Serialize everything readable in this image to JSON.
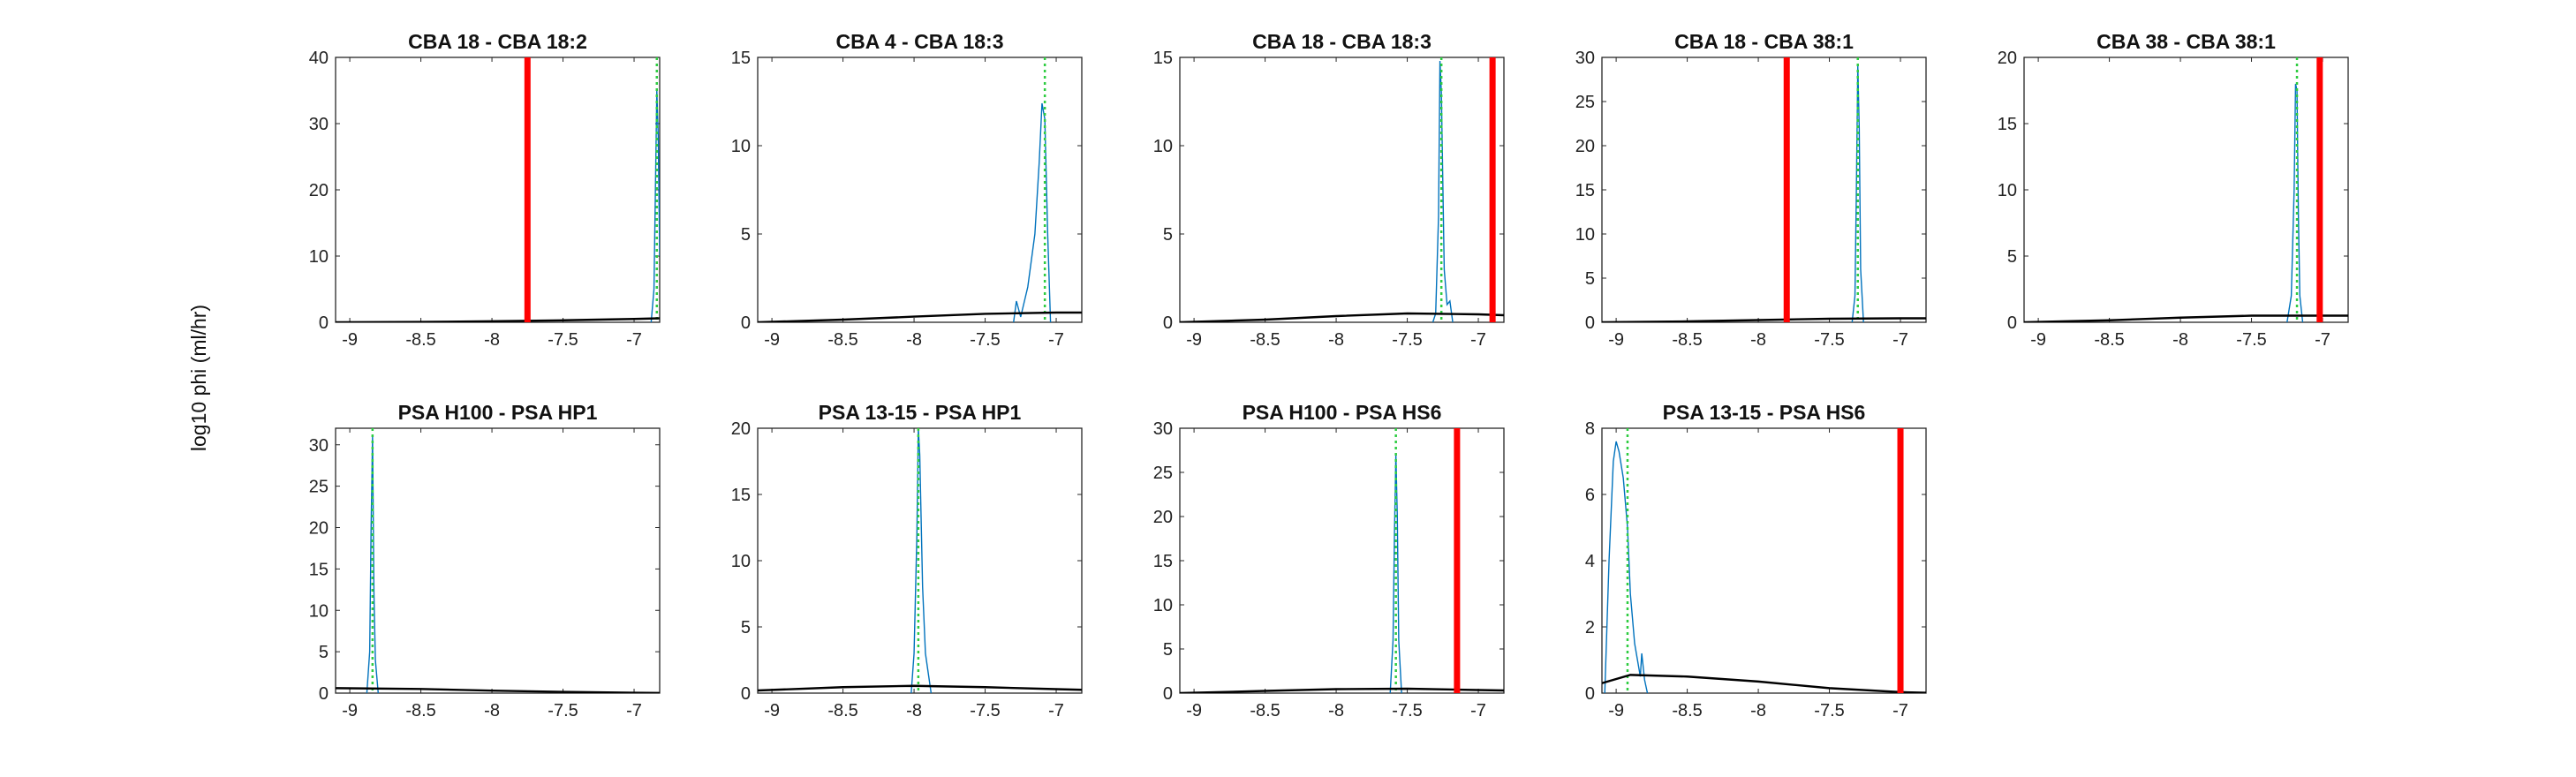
{
  "figure": {
    "ylabel": "log10 phi (ml/hr)"
  },
  "chart_data": [
    {
      "type": "line",
      "title": "CBA 18 - CBA 18:2",
      "xlim": [
        -9.1,
        -6.82
      ],
      "ylim": [
        0,
        40
      ],
      "xticks": [
        "-9",
        "-8.5",
        "-8",
        "-7.5",
        "-7"
      ],
      "yticks": [
        "0",
        "10",
        "20",
        "30",
        "40"
      ],
      "red_line_x": -7.75,
      "green_dotted_x": -6.84,
      "prior_curve": {
        "x": [
          -9.1,
          -8.5,
          -8,
          -7.5,
          -7,
          -6.82
        ],
        "y": [
          0,
          0.05,
          0.15,
          0.3,
          0.5,
          0.6
        ]
      },
      "posterior_hist": {
        "x": [
          -6.88,
          -6.86,
          -6.85,
          -6.84,
          -6.83,
          -6.82
        ],
        "y": [
          0,
          5,
          20,
          35,
          28,
          10
        ]
      }
    },
    {
      "type": "line",
      "title": "CBA 4 - CBA 18:3",
      "xlim": [
        -9.1,
        -6.82
      ],
      "ylim": [
        0,
        15
      ],
      "xticks": [
        "-9",
        "-8.5",
        "-8",
        "-7.5",
        "-7"
      ],
      "yticks": [
        "0",
        "5",
        "10",
        "15"
      ],
      "red_line_x": null,
      "green_dotted_x": -7.08,
      "prior_curve": {
        "x": [
          -9.1,
          -8.5,
          -8,
          -7.5,
          -7,
          -6.82
        ],
        "y": [
          0,
          0.15,
          0.32,
          0.48,
          0.55,
          0.55
        ]
      },
      "posterior_hist": {
        "x": [
          -7.3,
          -7.28,
          -7.25,
          -7.2,
          -7.15,
          -7.12,
          -7.1,
          -7.08,
          -7.06,
          -7.04
        ],
        "y": [
          0,
          1.2,
          0.3,
          2,
          5,
          9,
          12.4,
          11.5,
          5,
          0
        ]
      }
    },
    {
      "type": "line",
      "title": "CBA 18 - CBA 18:3",
      "xlim": [
        -9.1,
        -6.82
      ],
      "ylim": [
        0,
        15
      ],
      "xticks": [
        "-9",
        "-8.5",
        "-8",
        "-7.5",
        "-7"
      ],
      "yticks": [
        "0",
        "5",
        "10",
        "15"
      ],
      "red_line_x": -6.9,
      "green_dotted_x": -7.26,
      "prior_curve": {
        "x": [
          -9.1,
          -8.5,
          -8,
          -7.5,
          -7,
          -6.82
        ],
        "y": [
          0,
          0.15,
          0.35,
          0.5,
          0.45,
          0.4
        ]
      },
      "posterior_hist": {
        "x": [
          -7.32,
          -7.3,
          -7.28,
          -7.27,
          -7.26,
          -7.25,
          -7.24,
          -7.22,
          -7.2,
          -7.18
        ],
        "y": [
          0,
          0.5,
          6,
          14.8,
          13,
          8,
          3,
          1,
          1.2,
          0
        ]
      }
    },
    {
      "type": "line",
      "title": "CBA 18 - CBA 38:1",
      "xlim": [
        -9.1,
        -6.82
      ],
      "ylim": [
        0,
        30
      ],
      "xticks": [
        "-9",
        "-8.5",
        "-8",
        "-7.5",
        "-7"
      ],
      "yticks": [
        "0",
        "5",
        "10",
        "15",
        "20",
        "25",
        "30"
      ],
      "red_line_x": -7.8,
      "green_dotted_x": -7.3,
      "prior_curve": {
        "x": [
          -9.1,
          -8.5,
          -8,
          -7.5,
          -7,
          -6.82
        ],
        "y": [
          0,
          0.1,
          0.25,
          0.4,
          0.45,
          0.45
        ]
      },
      "posterior_hist": {
        "x": [
          -7.34,
          -7.32,
          -7.31,
          -7.3,
          -7.29,
          -7.28,
          -7.26
        ],
        "y": [
          0,
          3,
          15,
          29,
          22,
          6,
          0
        ]
      }
    },
    {
      "type": "line",
      "title": "CBA 38 - CBA 38:1",
      "xlim": [
        -9.1,
        -6.82
      ],
      "ylim": [
        0,
        20
      ],
      "xticks": [
        "-9",
        "-8.5",
        "-8",
        "-7.5",
        "-7"
      ],
      "yticks": [
        "0",
        "5",
        "10",
        "15",
        "20"
      ],
      "red_line_x": -7.02,
      "green_dotted_x": -7.18,
      "prior_curve": {
        "x": [
          -9.1,
          -8.5,
          -8,
          -7.5,
          -7,
          -6.82
        ],
        "y": [
          0,
          0.15,
          0.35,
          0.5,
          0.5,
          0.5
        ]
      },
      "posterior_hist": {
        "x": [
          -7.25,
          -7.22,
          -7.2,
          -7.19,
          -7.18,
          -7.17,
          -7.16,
          -7.14
        ],
        "y": [
          0,
          2,
          10,
          18,
          17.5,
          8,
          2,
          0
        ]
      }
    },
    {
      "type": "line",
      "title": "PSA H100 - PSA HP1",
      "xlim": [
        -9.1,
        -6.82
      ],
      "ylim": [
        0,
        32
      ],
      "xticks": [
        "-9",
        "-8.5",
        "-8",
        "-7.5",
        "-7"
      ],
      "yticks": [
        "0",
        "5",
        "10",
        "15",
        "20",
        "25",
        "30"
      ],
      "red_line_x": null,
      "green_dotted_x": -8.84,
      "prior_curve": {
        "x": [
          -9.1,
          -8.5,
          -8,
          -7.5,
          -7,
          -6.82
        ],
        "y": [
          0.6,
          0.5,
          0.3,
          0.15,
          0.05,
          0.02
        ]
      },
      "posterior_hist": {
        "x": [
          -8.88,
          -8.86,
          -8.85,
          -8.84,
          -8.83,
          -8.82,
          -8.8
        ],
        "y": [
          0,
          5,
          20,
          31,
          12,
          4,
          0
        ]
      }
    },
    {
      "type": "line",
      "title": "PSA 13-15 - PSA HP1",
      "xlim": [
        -9.1,
        -6.82
      ],
      "ylim": [
        0,
        20
      ],
      "xticks": [
        "-9",
        "-8.5",
        "-8",
        "-7.5",
        "-7"
      ],
      "yticks": [
        "0",
        "5",
        "10",
        "15",
        "20"
      ],
      "red_line_x": null,
      "green_dotted_x": -7.97,
      "prior_curve": {
        "x": [
          -9.1,
          -8.5,
          -8,
          -7.5,
          -7,
          -6.82
        ],
        "y": [
          0.2,
          0.45,
          0.55,
          0.45,
          0.3,
          0.25
        ]
      },
      "posterior_hist": {
        "x": [
          -8.02,
          -8,
          -7.98,
          -7.97,
          -7.96,
          -7.94,
          -7.92,
          -7.9,
          -7.88
        ],
        "y": [
          0,
          3,
          12,
          20,
          18,
          8,
          3,
          1.5,
          0
        ]
      }
    },
    {
      "type": "line",
      "title": "PSA H100 - PSA HS6",
      "xlim": [
        -9.1,
        -6.82
      ],
      "ylim": [
        0,
        30
      ],
      "xticks": [
        "-9",
        "-8.5",
        "-8",
        "-7.5",
        "-7"
      ],
      "yticks": [
        "0",
        "5",
        "10",
        "15",
        "20",
        "25",
        "30"
      ],
      "red_line_x": -7.15,
      "green_dotted_x": -7.58,
      "prior_curve": {
        "x": [
          -9.1,
          -8.5,
          -8,
          -7.5,
          -7,
          -6.82
        ],
        "y": [
          0,
          0.25,
          0.45,
          0.5,
          0.35,
          0.3
        ]
      },
      "posterior_hist": {
        "x": [
          -7.62,
          -7.6,
          -7.59,
          -7.58,
          -7.57,
          -7.56,
          -7.54
        ],
        "y": [
          0,
          6,
          18,
          27,
          20,
          6,
          0
        ]
      }
    },
    {
      "type": "line",
      "title": "PSA 13-15 - PSA HS6",
      "xlim": [
        -9.1,
        -6.82
      ],
      "ylim": [
        0,
        8
      ],
      "xticks": [
        "-9",
        "-8.5",
        "-8",
        "-7.5",
        "-7"
      ],
      "yticks": [
        "0",
        "2",
        "4",
        "6",
        "8"
      ],
      "red_line_x": -7.0,
      "green_dotted_x": -8.92,
      "prior_curve": {
        "x": [
          -9.1,
          -8.9,
          -8.5,
          -8,
          -7.5,
          -7,
          -6.82
        ],
        "y": [
          0.3,
          0.55,
          0.5,
          0.35,
          0.15,
          0.03,
          0.01
        ]
      },
      "posterior_hist": {
        "x": [
          -9.08,
          -9.05,
          -9.02,
          -9,
          -8.98,
          -8.95,
          -8.92,
          -8.9,
          -8.87,
          -8.85,
          -8.83,
          -8.82,
          -8.8,
          -8.78
        ],
        "y": [
          0,
          4,
          7,
          7.6,
          7.3,
          6.5,
          5,
          3,
          1.5,
          1,
          0.5,
          1.2,
          0.4,
          0
        ]
      }
    }
  ]
}
